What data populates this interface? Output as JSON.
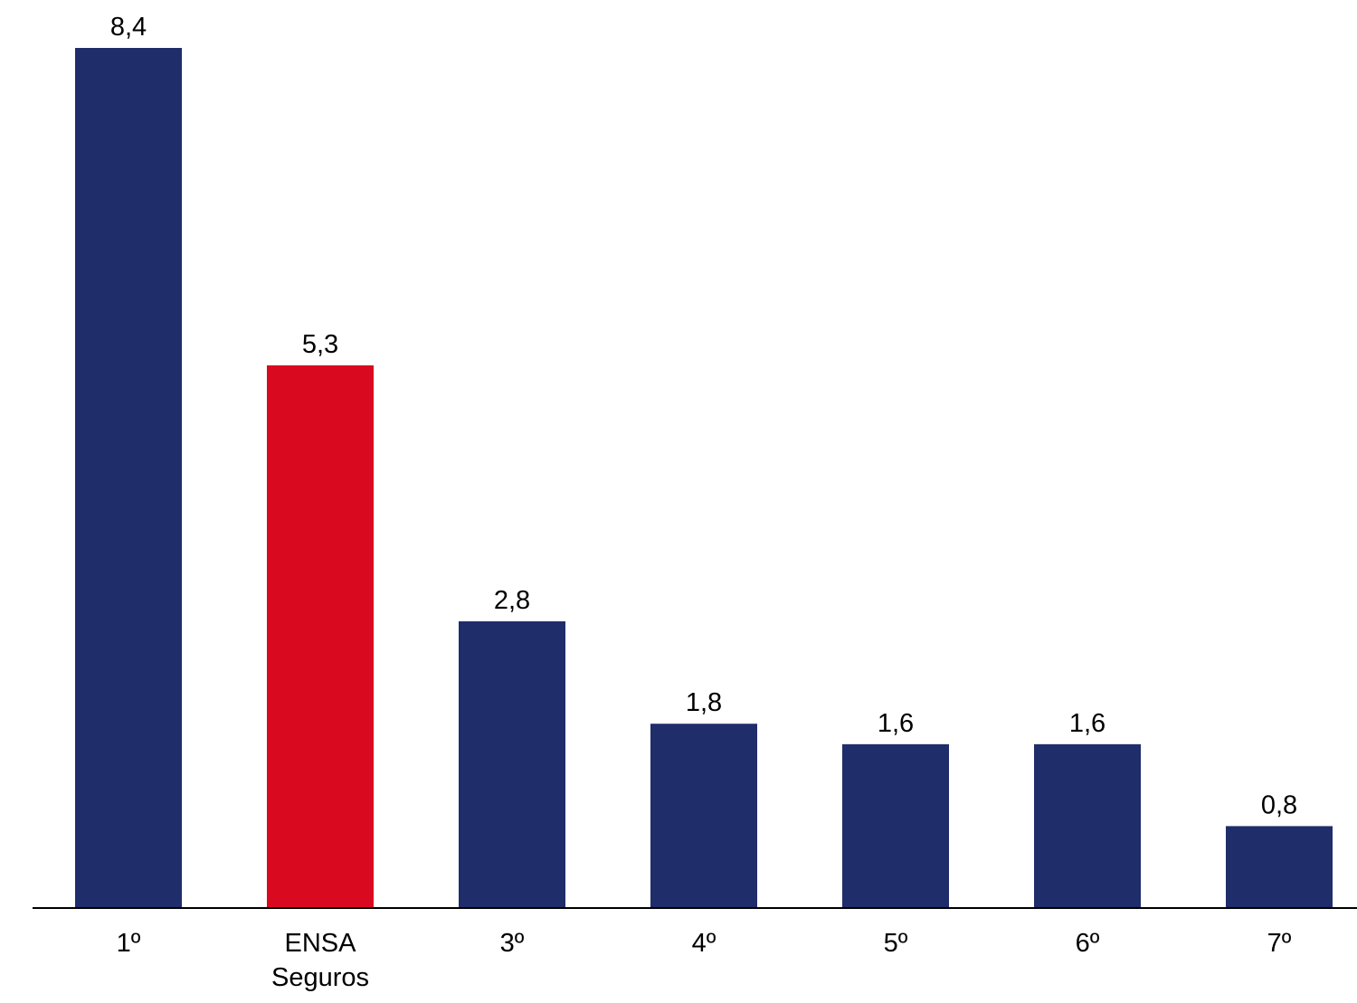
{
  "chart_data": {
    "type": "bar",
    "title": "",
    "xlabel": "",
    "ylabel": "",
    "categories": [
      [
        "1º"
      ],
      [
        "ENSA",
        "Seguros"
      ],
      [
        "3º"
      ],
      [
        "4º"
      ],
      [
        "5º"
      ],
      [
        "6º"
      ],
      [
        "7º"
      ]
    ],
    "values": [
      8.4,
      5.3,
      2.8,
      1.8,
      1.6,
      1.6,
      0.8
    ],
    "value_labels": [
      "8,4",
      "5,3",
      "2,8",
      "1,8",
      "1,6",
      "1,6",
      "0,8"
    ],
    "ylim": [
      0,
      8.4
    ],
    "grid": false,
    "legend": "none",
    "colors": {
      "default_bar": "#1f2d6b",
      "highlight_bar": "#d9091f",
      "axis": "#000000"
    },
    "highlight_index": 1
  }
}
